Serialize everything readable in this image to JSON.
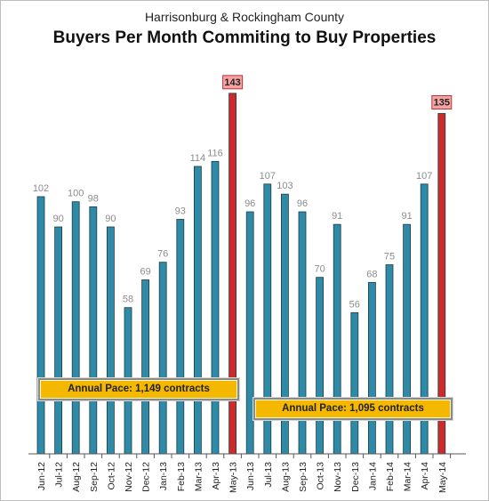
{
  "subtitle": "Harrisonburg & Rockingham County",
  "title": "Buyers Per Month Commiting to Buy Properties",
  "annotations": {
    "pace1": "Annual Pace: 1,149 contracts",
    "pace2": "Annual Pace: 1,095 contracts"
  },
  "colors": {
    "bar": "#2e8aa6",
    "bar_highlight": "#cc2b2b",
    "highlight_label_bg": "#f4a3a3",
    "annotation_bg": "#f4b800"
  },
  "chart_data": {
    "type": "bar",
    "title": "Buyers Per Month Commiting to Buy Properties",
    "categories": [
      "Jun-12",
      "Jul-12",
      "Aug-12",
      "Sep-12",
      "Oct-12",
      "Nov-12",
      "Dec-12",
      "Jan-13",
      "Feb-13",
      "Mar-13",
      "Apr-13",
      "May-13",
      "Jun-13",
      "Jul-13",
      "Aug-13",
      "Sep-13",
      "Oct-13",
      "Nov-13",
      "Dec-13",
      "Jan-14",
      "Feb-14",
      "Mar-14",
      "Apr-14",
      "May-14"
    ],
    "values": [
      102,
      90,
      100,
      98,
      90,
      58,
      69,
      76,
      93,
      114,
      116,
      143,
      96,
      107,
      103,
      96,
      70,
      91,
      56,
      68,
      75,
      91,
      107,
      135
    ],
    "highlighted": [
      "May-13",
      "May-14"
    ],
    "ylim": [
      0,
      150
    ],
    "grid": false,
    "legend": "none"
  }
}
